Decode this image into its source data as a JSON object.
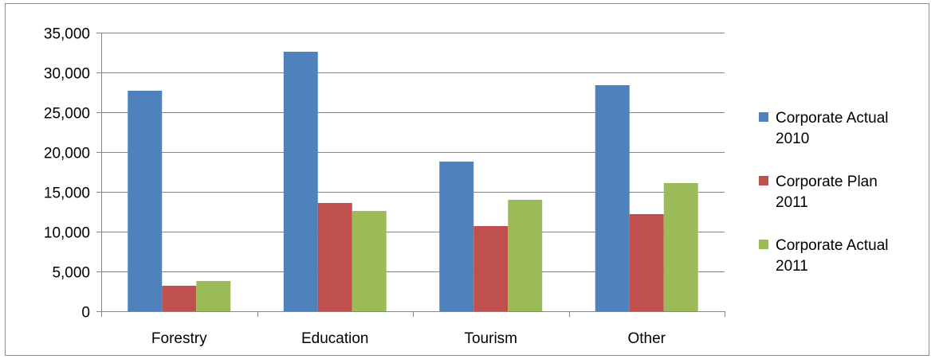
{
  "chart_data": {
    "type": "bar",
    "categories": [
      "Forestry",
      "Education",
      "Tourism",
      "Other"
    ],
    "series": [
      {
        "name": "Corporate Actual 2010",
        "name_lines": [
          "Corporate Actual",
          "2010"
        ],
        "color": "#4f81bd",
        "values": [
          27700,
          32600,
          18800,
          28400
        ]
      },
      {
        "name": "Corporate Plan 2011",
        "name_lines": [
          "Corporate Plan",
          "2011"
        ],
        "color": "#c0504d",
        "values": [
          3200,
          13600,
          10700,
          12200
        ]
      },
      {
        "name": "Corporate Actual 2011",
        "name_lines": [
          "Corporate Actual",
          "2011"
        ],
        "color": "#9bbb59",
        "values": [
          3800,
          12600,
          14000,
          16100
        ]
      }
    ],
    "ylim": [
      0,
      35000
    ],
    "yticks": [
      0,
      5000,
      10000,
      15000,
      20000,
      25000,
      30000,
      35000
    ],
    "ytick_labels": [
      "0",
      "5,000",
      "10,000",
      "15,000",
      "20,000",
      "25,000",
      "30,000",
      "35,000"
    ],
    "grid": true,
    "legend_position": "right"
  }
}
